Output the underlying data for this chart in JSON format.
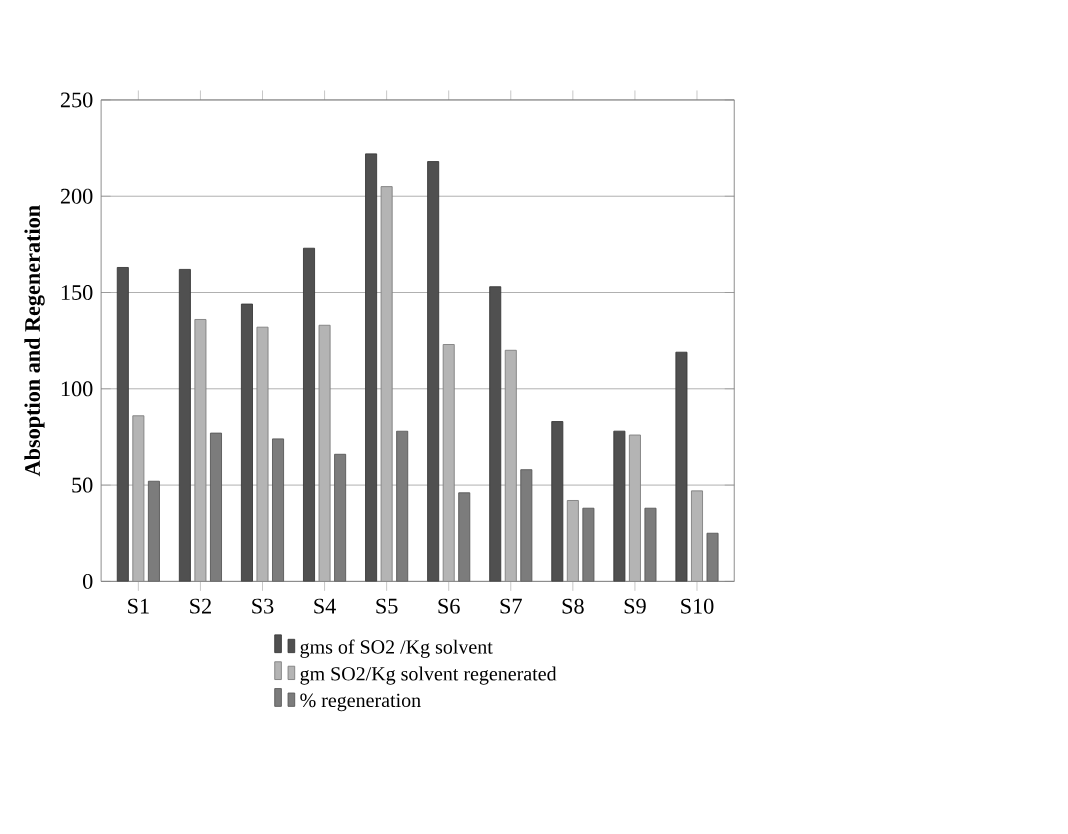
{
  "chart_data": {
    "type": "bar",
    "ylabel": "Absoption and Regeneration",
    "categories": [
      "S1",
      "S2",
      "S3",
      "S4",
      "S5",
      "S6",
      "S7",
      "S8",
      "S9",
      "S10"
    ],
    "series": [
      {
        "name": "gms of SO2 /Kg solvent",
        "color": "#505050",
        "values": [
          163,
          162,
          144,
          173,
          222,
          218,
          153,
          83,
          78,
          119
        ]
      },
      {
        "name": "gm SO2/Kg solvent regenerated",
        "color": "#b4b4b4",
        "values": [
          86,
          136,
          132,
          133,
          205,
          123,
          120,
          42,
          76,
          47
        ]
      },
      {
        "name": "% regeneration",
        "color": "#7c7c7c",
        "values": [
          52,
          77,
          74,
          66,
          78,
          46,
          58,
          38,
          38,
          25
        ]
      }
    ],
    "ylim": [
      0,
      250
    ],
    "yticks": [
      0,
      50,
      100,
      150,
      200,
      250
    ],
    "grid": "y",
    "legend": "bottom"
  }
}
